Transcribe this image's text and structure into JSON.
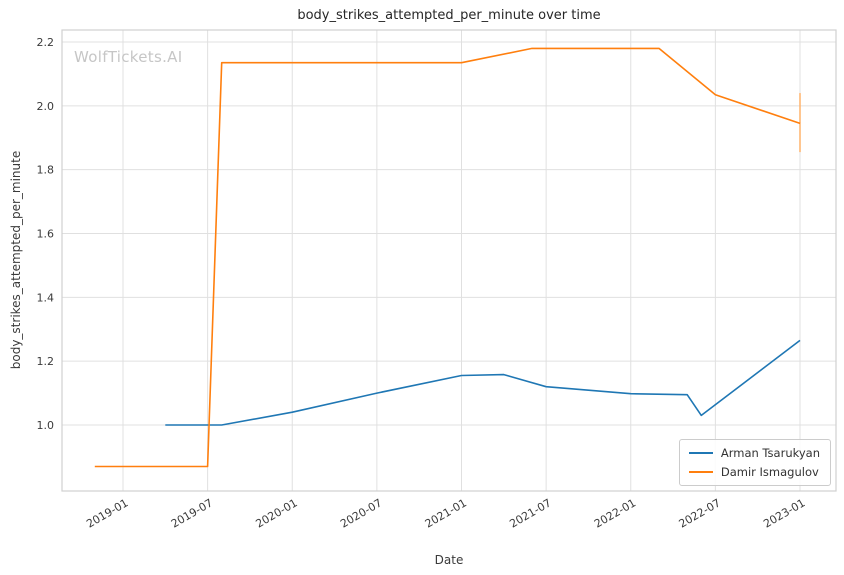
{
  "watermark": "WolfTickets.AI",
  "chart_data": {
    "type": "line",
    "title": "body_strikes_attempted_per_minute over time",
    "xlabel": "Date",
    "ylabel": "body_strikes_attempted_per_minute",
    "grid": true,
    "legend_position": "lower right",
    "x_ticks": [
      "2019-01",
      "2019-07",
      "2020-01",
      "2020-07",
      "2021-01",
      "2021-07",
      "2022-01",
      "2022-07",
      "2023-01"
    ],
    "y_ticks": [
      1.0,
      1.2,
      1.4,
      1.6,
      1.8,
      2.0,
      2.2
    ],
    "y_tick_labels": [
      "1.0",
      "1.2",
      "1.4",
      "1.6",
      "1.8",
      "2.0",
      "2.2"
    ],
    "xlim": [
      "2018-08",
      "2023-03"
    ],
    "ylim": [
      0.79,
      2.24
    ],
    "series": [
      {
        "name": "Arman Tsarukyan",
        "color": "#1f77b4",
        "points": [
          [
            "2019-04",
            1.0
          ],
          [
            "2019-08",
            1.0
          ],
          [
            "2020-01",
            1.04
          ],
          [
            "2020-07",
            1.1
          ],
          [
            "2021-01",
            1.155
          ],
          [
            "2021-04",
            1.158
          ],
          [
            "2021-07",
            1.12
          ],
          [
            "2022-01",
            1.098
          ],
          [
            "2022-05",
            1.095
          ],
          [
            "2022-06",
            1.03
          ],
          [
            "2023-01",
            1.265
          ]
        ]
      },
      {
        "name": "Damir Ismagulov",
        "color": "#ff7f0e",
        "points": [
          [
            "2018-11",
            0.87
          ],
          [
            "2019-07",
            0.87
          ],
          [
            "2019-08",
            2.135
          ],
          [
            "2021-01",
            2.135
          ],
          [
            "2021-06",
            2.18
          ],
          [
            "2022-03",
            2.18
          ],
          [
            "2022-07",
            2.035
          ],
          [
            "2023-01",
            1.945
          ]
        ]
      }
    ],
    "annotations": [
      {
        "type": "vertical_segment",
        "x": "2023-01",
        "y_from": 1.855,
        "y_to": 2.04,
        "color": "#ffb26b"
      }
    ]
  }
}
